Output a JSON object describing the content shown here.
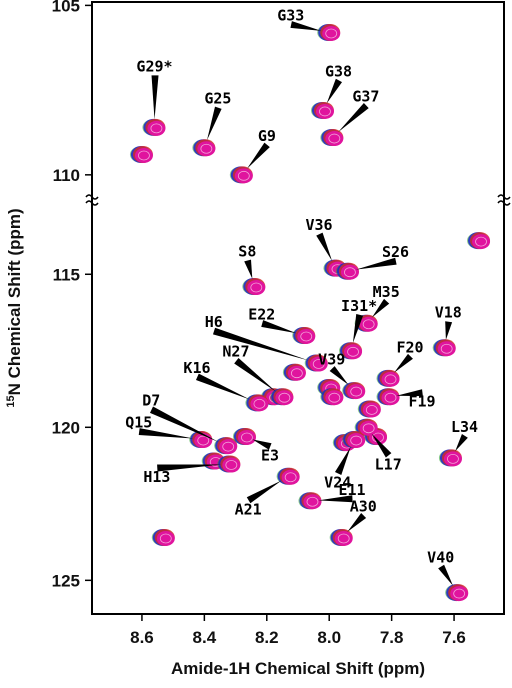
{
  "chart_data": {
    "type": "scatter",
    "title": "",
    "xlabel": "Amide-1H Chemical Shift (ppm)",
    "ylabel_sup": "15",
    "ylabel_rest": "N Chemical Shift (ppm)",
    "x_reversed": true,
    "y_reversed": true,
    "xlim": [
      8.76,
      7.44
    ],
    "y_axis_break": true,
    "ylim_upper_segment": [
      104.9,
      110.3
    ],
    "ylim_lower_segment": [
      112.9,
      126.1
    ],
    "xticks": [
      "8.6",
      "8.4",
      "8.2",
      "8.0",
      "7.8",
      "7.6"
    ],
    "yticks": [
      "105",
      "110",
      "115",
      "120",
      "125"
    ],
    "contour_colors": [
      "#e0149e",
      "#d32a2a",
      "#1e22c8",
      "#2aa02a"
    ],
    "peaks": [
      {
        "label": "G33",
        "x": 8.0,
        "y": 105.8
      },
      {
        "label": "G29*",
        "x": 8.56,
        "y": 108.6
      },
      {
        "label": "G38",
        "x": 8.02,
        "y": 108.1
      },
      {
        "label": "G37",
        "x": 7.99,
        "y": 108.9
      },
      {
        "label": "G25",
        "x": 8.4,
        "y": 109.2
      },
      {
        "label": "G9",
        "x": 8.28,
        "y": 110.0
      },
      {
        "label": "S8",
        "x": 8.24,
        "y": 115.4
      },
      {
        "label": "V36",
        "x": 7.98,
        "y": 114.8
      },
      {
        "label": "S26",
        "x": 7.94,
        "y": 114.9
      },
      {
        "label": "M35",
        "x": 7.88,
        "y": 116.6
      },
      {
        "label": "I31*",
        "x": 7.93,
        "y": 117.5
      },
      {
        "label": "V18",
        "x": 7.63,
        "y": 117.4
      },
      {
        "label": "E22",
        "x": 8.08,
        "y": 117.0
      },
      {
        "label": "H6",
        "x": 8.04,
        "y": 117.9
      },
      {
        "label": "F20",
        "x": 7.81,
        "y": 118.4
      },
      {
        "label": "N27",
        "x": 8.15,
        "y": 119.0
      },
      {
        "label": "V39",
        "x": 7.92,
        "y": 118.8
      },
      {
        "label": "F19",
        "x": 7.81,
        "y": 119.0
      },
      {
        "label": "K16",
        "x": 8.23,
        "y": 119.2
      },
      {
        "label": "D7",
        "x": 8.33,
        "y": 120.6
      },
      {
        "label": "L17",
        "x": 7.88,
        "y": 120.0
      },
      {
        "label": "Q15",
        "x": 8.41,
        "y": 120.4
      },
      {
        "label": "E3",
        "x": 8.27,
        "y": 120.3
      },
      {
        "label": "L34",
        "x": 7.61,
        "y": 121.0
      },
      {
        "label": "V24",
        "x": 7.92,
        "y": 120.4
      },
      {
        "label": "H13",
        "x": 8.32,
        "y": 121.2
      },
      {
        "label": "A21",
        "x": 8.13,
        "y": 121.6
      },
      {
        "label": "E11",
        "x": 8.06,
        "y": 122.4
      },
      {
        "label": "A30",
        "x": 7.96,
        "y": 123.6
      },
      {
        "label": "V40",
        "x": 7.59,
        "y": 125.4
      }
    ],
    "unlabeled_peaks": [
      {
        "x": 8.6,
        "y": 109.4
      },
      {
        "x": 7.52,
        "y": 113.9
      },
      {
        "x": 8.11,
        "y": 118.2
      },
      {
        "x": 8.0,
        "y": 118.7
      },
      {
        "x": 7.99,
        "y": 119.0
      },
      {
        "x": 8.18,
        "y": 119.0
      },
      {
        "x": 7.87,
        "y": 119.4
      },
      {
        "x": 7.85,
        "y": 120.3
      },
      {
        "x": 7.95,
        "y": 120.5
      },
      {
        "x": 8.37,
        "y": 121.1
      },
      {
        "x": 8.53,
        "y": 123.6
      }
    ]
  }
}
